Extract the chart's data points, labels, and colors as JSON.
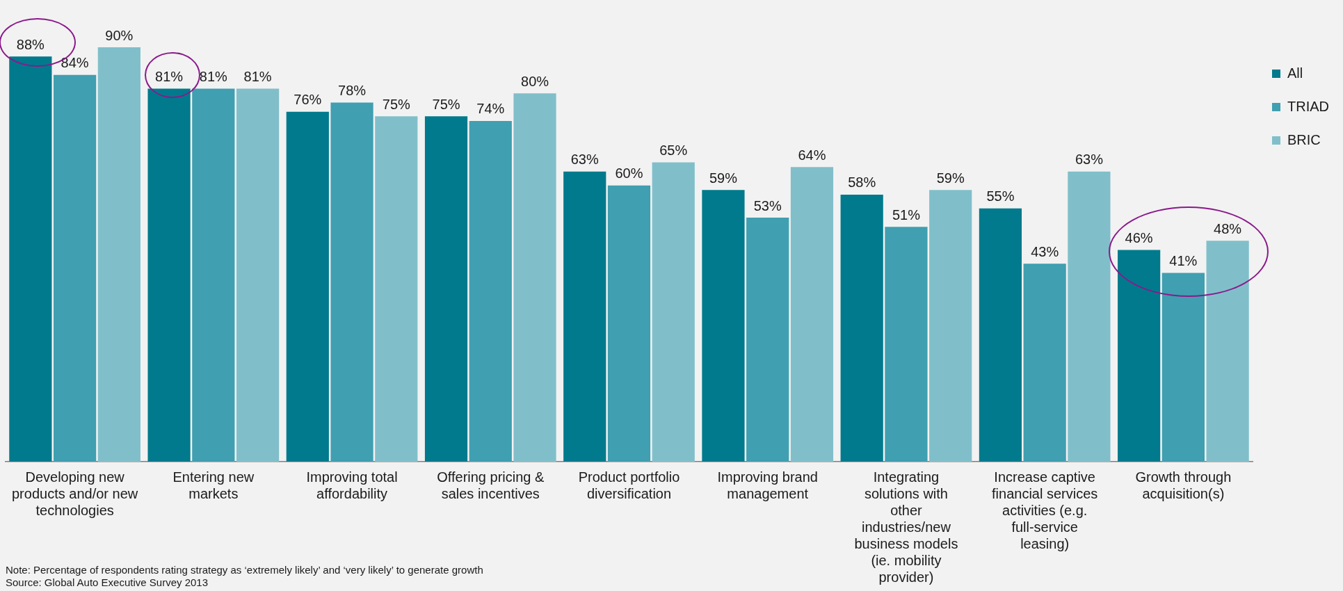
{
  "chart_data": {
    "type": "bar",
    "categories": [
      "Developing new products and/or new technologies",
      "Entering new markets",
      "Improving total affordability",
      "Offering pricing & sales incentives",
      "Product portfolio diversification",
      "Improving brand management",
      "Integrating solutions with other industries/new business models (ie. mobility provider)",
      "Increase captive financial services activities (e.g. full-service leasing)",
      "Growth through acquisition(s)"
    ],
    "series": [
      {
        "name": "All",
        "color": "#007a8c",
        "values": [
          88,
          81,
          76,
          75,
          63,
          59,
          58,
          55,
          46
        ],
        "value_labels": [
          "88%",
          "81%",
          "76%",
          "75%",
          "63%",
          "59%",
          "58%",
          "55%",
          "46%"
        ]
      },
      {
        "name": "TRIAD",
        "color": "#409fb0",
        "values": [
          84,
          81,
          78,
          74,
          60,
          53,
          51,
          43,
          41
        ],
        "value_labels": [
          "84%",
          "81%",
          "78%",
          "74%",
          "60%",
          "53%",
          "51%",
          "43%",
          "41%"
        ]
      },
      {
        "name": "BRIC",
        "color": "#80bfca",
        "values": [
          90,
          81,
          75,
          80,
          65,
          64,
          59,
          63,
          48
        ],
        "value_labels": [
          "90%",
          "81%",
          "75%",
          "80%",
          "65%",
          "64%",
          "59%",
          "63%",
          "48%"
        ]
      }
    ],
    "tick_labels": "x",
    "grid": false,
    "legend": "top right",
    "annotations": [
      "Note: Percentage of respondents rating strategy as ‘extremely likely’ and ‘very likely’ to generate growth",
      "Source: Global Auto Executive Survey 2013"
    ]
  }
}
